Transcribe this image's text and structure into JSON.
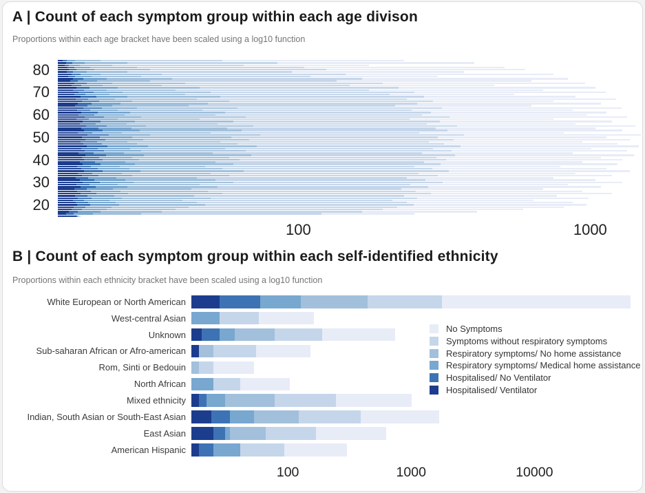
{
  "palette": {
    "no_symptoms": "#e7ecf7",
    "symptoms_without_resp": "#c5d6ea",
    "resp_no_home": "#a2c0db",
    "resp_medical": "#78a7d0",
    "hosp_no_vent": "#3d73b5",
    "hosp_vent": "#1c3d8e"
  },
  "panel_a": {
    "title": "A | Count of each symptom group within each age divison",
    "subtitle": "Proportions within each age bracket have been scaled using a log10 function",
    "chart_data": {
      "type": "bar",
      "orientation": "horizontal-stacked",
      "scale": "log10",
      "xlim": [
        15,
        1500
      ],
      "xticks": [
        100,
        1000
      ],
      "yticks": [
        80,
        70,
        60,
        50,
        40,
        30,
        20
      ],
      "y_top_age": 84,
      "y_bottom_age": 15,
      "series_order": [
        "hosp_vent",
        "hosp_no_vent",
        "resp_medical",
        "resp_no_home",
        "symptoms_without_resp",
        "no_symptoms"
      ],
      "rows_note": "each row = [age, cumulative end of each stacked segment, darkest to lightest]",
      "rows": [
        [
          84,
          15.6,
          16.1,
          17.2,
          21,
          55,
          230
        ],
        [
          83,
          16.0,
          16.8,
          18.5,
          26,
          85,
          400
        ],
        [
          82,
          15.8,
          16.4,
          17.8,
          23,
          65,
          175
        ],
        [
          81,
          16.2,
          17.1,
          19.4,
          28,
          105,
          510
        ],
        [
          80,
          16.4,
          17.4,
          20,
          31,
          125,
          600
        ],
        [
          79,
          16.1,
          16.9,
          18.8,
          26,
          95,
          370
        ],
        [
          78,
          16.7,
          17.9,
          21,
          34,
          145,
          750
        ],
        [
          77,
          16.3,
          17.2,
          19.6,
          29,
          110,
          300
        ],
        [
          76,
          16.9,
          18.3,
          22,
          37,
          165,
          840
        ],
        [
          75,
          16.5,
          17.6,
          20.4,
          31,
          135,
          630
        ],
        [
          74,
          17.1,
          18.8,
          23,
          41,
          195,
          960
        ],
        [
          73,
          16.7,
          18.0,
          21.4,
          34,
          150,
          470
        ],
        [
          72,
          17.4,
          19.3,
          24,
          46,
          220,
          1040
        ],
        [
          71,
          16.9,
          18.4,
          22,
          38,
          175,
          690
        ],
        [
          70,
          17.7,
          19.9,
          25,
          50,
          250,
          1130
        ],
        [
          69,
          17.1,
          18.6,
          22.6,
          41,
          205,
          550
        ],
        [
          68,
          17.9,
          20.3,
          26,
          54,
          270,
          890
        ],
        [
          67,
          17.3,
          19.0,
          23.5,
          45,
          235,
          1230
        ],
        [
          66,
          18.1,
          20.8,
          27,
          58,
          290,
          750
        ],
        [
          65,
          17.6,
          19.6,
          24.6,
          49,
          255,
          1090
        ],
        [
          64,
          17.2,
          18.9,
          23,
          42,
          215,
          630
        ],
        [
          63,
          18.3,
          21.2,
          28,
          62,
          310,
          1280
        ],
        [
          62,
          17.5,
          19.4,
          24,
          47,
          245,
          870
        ],
        [
          61,
          18.0,
          20.6,
          26.5,
          56,
          285,
          1140
        ],
        [
          60,
          17.7,
          20.0,
          25.4,
          52,
          265,
          970
        ],
        [
          59,
          18.5,
          21.6,
          29,
          66,
          330,
          1340
        ],
        [
          58,
          17.4,
          19.2,
          24,
          46,
          240,
          750
        ],
        [
          57,
          18.2,
          21.0,
          27.5,
          60,
          305,
          1190
        ],
        [
          56,
          17.8,
          20.2,
          25.8,
          53,
          275,
          890
        ],
        [
          55,
          18.7,
          22.0,
          30,
          70,
          350,
          1430
        ],
        [
          54,
          18.0,
          20.7,
          26.8,
          57,
          295,
          1040
        ],
        [
          53,
          18.4,
          21.4,
          28.6,
          64,
          325,
          1290
        ],
        [
          52,
          17.6,
          19.7,
          24.8,
          50,
          260,
          810
        ],
        [
          51,
          18.9,
          22.4,
          31,
          74,
          370,
          1490
        ],
        [
          50,
          18.1,
          20.9,
          27,
          59,
          300,
          1140
        ],
        [
          49,
          18.6,
          21.8,
          29.4,
          68,
          340,
          1370
        ],
        [
          48,
          17.9,
          20.4,
          26,
          54,
          280,
          940
        ],
        [
          47,
          18.3,
          21.2,
          28,
          62,
          315,
          1240
        ],
        [
          46,
          18.8,
          22.2,
          30.5,
          72,
          360,
          1470
        ],
        [
          45,
          18.0,
          20.6,
          26.6,
          56,
          290,
          1010
        ],
        [
          44,
          18.5,
          21.6,
          29,
          66,
          335,
          1340
        ],
        [
          43,
          17.7,
          19.9,
          25.2,
          51,
          265,
          870
        ],
        [
          42,
          18.6,
          21.9,
          29.6,
          69,
          345,
          1410
        ],
        [
          41,
          18.1,
          20.8,
          26.9,
          58,
          298,
          1090
        ],
        [
          40,
          18.4,
          21.3,
          28.4,
          63,
          320,
          1290
        ],
        [
          39,
          17.8,
          20.1,
          25.6,
          52,
          270,
          940
        ],
        [
          38,
          18.2,
          21.0,
          27.6,
          60,
          308,
          1240
        ],
        [
          37,
          17.5,
          19.5,
          24.4,
          48,
          250,
          790
        ],
        [
          36,
          18.0,
          20.5,
          26.4,
          55,
          288,
          1140
        ],
        [
          35,
          18.4,
          21.4,
          28.8,
          65,
          328,
          1370
        ],
        [
          34,
          17.6,
          19.7,
          24.9,
          50,
          258,
          890
        ],
        [
          33,
          18.1,
          20.7,
          26.9,
          58,
          300,
          1190
        ],
        [
          32,
          17.3,
          19.1,
          23.8,
          45,
          235,
          750
        ],
        [
          31,
          17.8,
          20.0,
          25.6,
          52,
          272,
          1040
        ],
        [
          30,
          18.2,
          20.9,
          27.3,
          60,
          312,
          1290
        ],
        [
          29,
          17.4,
          19.3,
          24.1,
          46,
          242,
          840
        ],
        [
          28,
          17.9,
          20.2,
          25.9,
          53,
          278,
          1090
        ],
        [
          27,
          17.1,
          18.8,
          23.2,
          43,
          225,
          690
        ],
        [
          26,
          17.5,
          19.5,
          24.6,
          49,
          252,
          940
        ],
        [
          25,
          17.9,
          20.3,
          26.1,
          55,
          285,
          1190
        ],
        [
          24,
          17.2,
          18.9,
          23.4,
          44,
          230,
          770
        ],
        [
          23,
          17.6,
          19.6,
          24.8,
          50,
          256,
          990
        ],
        [
          22,
          16.9,
          18.4,
          22.6,
          40,
          210,
          640
        ],
        [
          21,
          17.3,
          19.0,
          23.7,
          45,
          236,
          870
        ],
        [
          20,
          17.5,
          19.4,
          24.3,
          48,
          248,
          970
        ],
        [
          19,
          17.0,
          18.6,
          22.9,
          42,
          218,
          810
        ],
        [
          18,
          16.7,
          18.1,
          22,
          38,
          195,
          590
        ],
        [
          17,
          16.4,
          17.6,
          21,
          34,
          165,
          410
        ],
        [
          16,
          16.0,
          17.0,
          19.8,
          29,
          120,
          250
        ],
        [
          15,
          17.4,
          17.5,
          17.6,
          17.7,
          17.8,
          18
        ]
      ]
    }
  },
  "panel_b": {
    "title": "B | Count of each symptom group within each self-identified ethnicity",
    "subtitle": "Proportions within each ethnicity bracket have been scaled using a log10 function",
    "legend": [
      {
        "key": "no_symptoms",
        "label": "No Symptoms"
      },
      {
        "key": "symptoms_without_resp",
        "label": "Symptoms without respiratory symptoms"
      },
      {
        "key": "resp_no_home",
        "label": "Respiratory symptoms/ No home assistance"
      },
      {
        "key": "resp_medical",
        "label": "Respiratory symptoms/ Medical home assistance"
      },
      {
        "key": "hosp_no_vent",
        "label": "Hospitalised/ No Ventilator"
      },
      {
        "key": "hosp_vent",
        "label": "Hospitalised/ Ventilator"
      }
    ],
    "chart_data": {
      "type": "bar",
      "orientation": "horizontal-stacked",
      "scale": "log10",
      "xlim": [
        16.5,
        74000
      ],
      "xticks": [
        100,
        1000,
        10000
      ],
      "rows_note": "segments = [category key, cumulative end value read off the log10 axis]",
      "rows": [
        {
          "label": "White European or North American",
          "segments": [
            [
              "hosp_vent",
              28
            ],
            [
              "hosp_no_vent",
              60
            ],
            [
              "resp_medical",
              128
            ],
            [
              "resp_no_home",
              445
            ],
            [
              "symptoms_without_resp",
              1780
            ],
            [
              "no_symptoms",
              60500
            ]
          ]
        },
        {
          "label": "West-central Asian",
          "segments": [
            [
              "resp_medical",
              28
            ],
            [
              "symptoms_without_resp",
              58
            ],
            [
              "no_symptoms",
              163
            ]
          ]
        },
        {
          "label": "Unknown",
          "segments": [
            [
              "hosp_vent",
              20
            ],
            [
              "hosp_no_vent",
              28
            ],
            [
              "resp_medical",
              37
            ],
            [
              "resp_no_home",
              78
            ],
            [
              "symptoms_without_resp",
              190
            ],
            [
              "no_symptoms",
              745
            ]
          ]
        },
        {
          "label": "Sub-saharan African or Afro-american",
          "segments": [
            [
              "hosp_vent",
              19
            ],
            [
              "resp_no_home",
              25
            ],
            [
              "symptoms_without_resp",
              55
            ],
            [
              "no_symptoms",
              153
            ]
          ]
        },
        {
          "label": "Rom, Sinti or Bedouin",
          "segments": [
            [
              "resp_no_home",
              19
            ],
            [
              "symptoms_without_resp",
              25
            ],
            [
              "no_symptoms",
              53
            ]
          ]
        },
        {
          "label": "North African",
          "segments": [
            [
              "resp_medical",
              25
            ],
            [
              "symptoms_without_resp",
              41
            ],
            [
              "no_symptoms",
              104
            ]
          ]
        },
        {
          "label": "Mixed ethnicity",
          "segments": [
            [
              "hosp_vent",
              19
            ],
            [
              "hosp_no_vent",
              22
            ],
            [
              "resp_medical",
              31
            ],
            [
              "resp_no_home",
              78
            ],
            [
              "symptoms_without_resp",
              246
            ],
            [
              "no_symptoms",
              1015
            ]
          ]
        },
        {
          "label": "Indian, South Asian or South-East Asian",
          "segments": [
            [
              "hosp_vent",
              24
            ],
            [
              "hosp_no_vent",
              34
            ],
            [
              "resp_medical",
              53
            ],
            [
              "resp_no_home",
              123
            ],
            [
              "symptoms_without_resp",
              390
            ],
            [
              "no_symptoms",
              1695
            ]
          ]
        },
        {
          "label": "East Asian",
          "segments": [
            [
              "hosp_vent",
              25
            ],
            [
              "hosp_no_vent",
              31
            ],
            [
              "resp_medical",
              34
            ],
            [
              "resp_no_home",
              66
            ],
            [
              "symptoms_without_resp",
              170
            ],
            [
              "no_symptoms",
              630
            ]
          ]
        },
        {
          "label": "American Hispanic",
          "segments": [
            [
              "hosp_vent",
              19
            ],
            [
              "hosp_no_vent",
              25
            ],
            [
              "resp_medical",
              41
            ],
            [
              "symptoms_without_resp",
              94
            ],
            [
              "no_symptoms",
              300
            ]
          ]
        }
      ]
    }
  }
}
